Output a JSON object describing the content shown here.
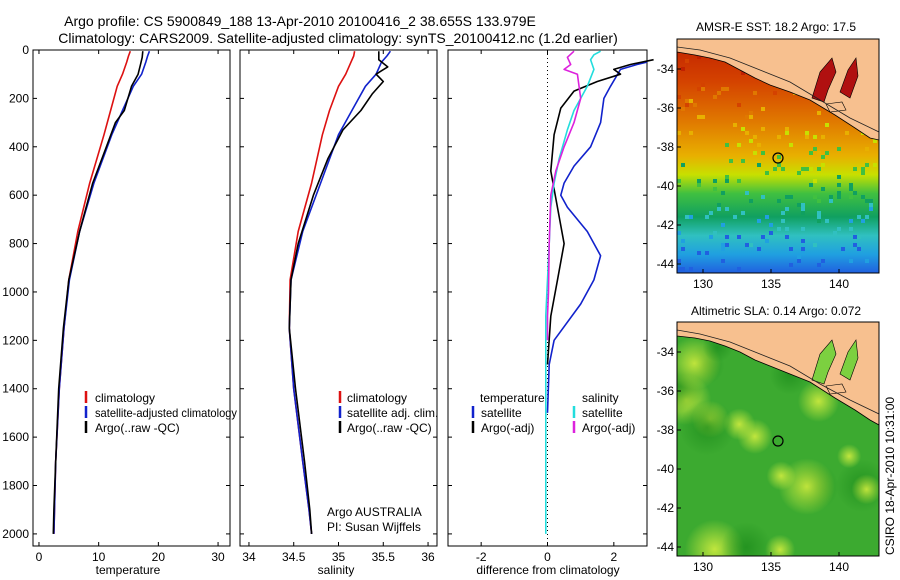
{
  "header": {
    "title_line1": "Argo profile: CS 5900849_188 13-Apr-2010 20100416_2 38.655S 133.979E",
    "title_line2": "Climatology: CARS2009. Satellite-adjusted climatology: synTS_20100412.nc (1.2d earlier)"
  },
  "credit": "CSIRO 18-Apr-2010 10:31:00",
  "colors": {
    "red": "#dd1111",
    "blue": "#1122cc",
    "black": "#000000",
    "cyan": "#22dddd",
    "magenta": "#dd22dd",
    "land": "#f7c08f"
  },
  "chart_data": [
    {
      "type": "line",
      "panel": "temperature",
      "xlabel": "temperature",
      "ylabel": "",
      "xlim": [
        -1,
        32
      ],
      "ylim": [
        2050,
        0
      ],
      "y_reversed": true,
      "xticks": [
        "0",
        "10",
        "20",
        "30"
      ],
      "yticks": [
        "0",
        "200",
        "400",
        "600",
        "800",
        "1000",
        "1200",
        "1400",
        "1600",
        "1800",
        "2000"
      ],
      "legend": [
        "climatology",
        "satellite-adjusted climatology",
        "Argo(..raw -QC)"
      ],
      "legend_position": "lower-right",
      "series": [
        {
          "name": "climatology",
          "color": "red",
          "x": [
            15.3,
            15.0,
            14.7,
            14.0,
            13.1,
            12.0,
            10.9,
            8.5,
            6.5,
            5.0,
            4.2,
            3.4,
            2.8,
            2.6,
            2.5
          ],
          "y": [
            5,
            25,
            50,
            100,
            150,
            250,
            350,
            550,
            750,
            950,
            1150,
            1400,
            1700,
            1900,
            2000
          ]
        },
        {
          "name": "satellite-adjusted climatology",
          "color": "blue",
          "x": [
            18.5,
            18.2,
            17.9,
            17.2,
            15.8,
            14.0,
            12.2,
            9.2,
            6.8,
            5.1,
            4.2,
            3.4,
            2.8,
            2.6,
            2.5
          ],
          "y": [
            5,
            25,
            50,
            100,
            150,
            250,
            350,
            550,
            750,
            950,
            1150,
            1400,
            1700,
            1900,
            2000
          ]
        },
        {
          "name": "Argo(..raw -QC)",
          "color": "black",
          "x": [
            17.4,
            17.3,
            17.0,
            16.6,
            15.5,
            14.3,
            12.8,
            11.3,
            9.0,
            6.8,
            5.0,
            4.1,
            3.3,
            2.8,
            2.5,
            2.4
          ],
          "y": [
            5,
            30,
            60,
            100,
            150,
            250,
            300,
            400,
            550,
            750,
            950,
            1150,
            1400,
            1700,
            1900,
            2000
          ]
        }
      ]
    },
    {
      "type": "line",
      "panel": "salinity",
      "xlabel": "salinity",
      "ylabel": "",
      "xlim": [
        33.9,
        36.1
      ],
      "ylim": [
        2050,
        0
      ],
      "y_reversed": true,
      "xticks": [
        "34",
        "34.5",
        "35",
        "35.5",
        "36"
      ],
      "legend": [
        "climatology",
        "satellite adj. clim.",
        "Argo(..raw -QC)"
      ],
      "legend_position": "lower-right",
      "annotation_line1": "Argo AUSTRALIA",
      "annotation_line2": "PI: Susan Wijffels",
      "series": [
        {
          "name": "climatology",
          "color": "red",
          "x": [
            35.18,
            35.17,
            35.14,
            35.08,
            35.0,
            34.9,
            34.82,
            34.7,
            34.55,
            34.46,
            34.45,
            34.5,
            34.6,
            34.67,
            34.7
          ],
          "y": [
            5,
            25,
            50,
            100,
            150,
            250,
            350,
            550,
            750,
            950,
            1150,
            1400,
            1700,
            1900,
            2000
          ]
        },
        {
          "name": "satellite adj. clim.",
          "color": "blue",
          "x": [
            35.58,
            35.54,
            35.48,
            35.42,
            35.3,
            35.15,
            35.0,
            34.8,
            34.6,
            34.47,
            34.45,
            34.5,
            34.6,
            34.67,
            34.7
          ],
          "y": [
            5,
            25,
            50,
            100,
            150,
            250,
            350,
            550,
            750,
            950,
            1150,
            1400,
            1700,
            1900,
            2000
          ]
        },
        {
          "name": "Argo(..raw -QC)",
          "color": "black",
          "x": [
            35.45,
            35.45,
            35.55,
            35.42,
            35.5,
            35.38,
            35.25,
            35.05,
            34.88,
            34.72,
            34.55,
            34.47,
            34.45,
            34.52,
            34.62,
            34.68,
            34.7
          ],
          "y": [
            5,
            40,
            70,
            100,
            130,
            180,
            250,
            330,
            450,
            600,
            800,
            950,
            1150,
            1400,
            1700,
            1900,
            2000
          ]
        }
      ]
    },
    {
      "type": "line",
      "panel": "difference",
      "xlabel": "difference from climatology",
      "ylabel": "",
      "xlim": [
        -3,
        3
      ],
      "ylim": [
        2050,
        0
      ],
      "y_reversed": true,
      "xticks": [
        "-2",
        "0",
        "2"
      ],
      "legend_headers": [
        "temperature",
        "salinity"
      ],
      "legend": [
        "satellite",
        "Argo(-adj)",
        "satellite",
        "Argo(-adj)"
      ],
      "legend_position": "lower-middle",
      "series": [
        {
          "name": "temperature satellite",
          "color": "blue",
          "x": [
            3.0,
            2.7,
            2.2,
            1.9,
            1.7,
            1.6,
            1.3,
            0.8,
            0.5,
            0.4,
            0.6,
            1.2,
            1.6,
            1.4,
            1.0,
            0.2,
            0.05,
            0
          ],
          "y": [
            50,
            60,
            80,
            150,
            200,
            300,
            400,
            480,
            550,
            600,
            650,
            750,
            850,
            950,
            1050,
            1200,
            1300,
            1500
          ]
        },
        {
          "name": "temperature Argo(-adj)",
          "color": "black",
          "x": [
            3.2,
            2.5,
            2.0,
            2.2,
            1.5,
            0.8,
            0.4,
            0.2,
            0.1,
            0.5,
            0.3,
            0.1,
            0
          ],
          "y": [
            40,
            60,
            80,
            100,
            130,
            170,
            240,
            350,
            500,
            800,
            950,
            1100,
            1300
          ]
        },
        {
          "name": "salinity satellite",
          "color": "cyan",
          "x": [
            1.6,
            1.4,
            1.3,
            1.4,
            1.2,
            1.0,
            0.8,
            0.6,
            0.35,
            0.2,
            0.1,
            0.05,
            0.0,
            -0.05,
            -0.05,
            -0.05,
            -0.05
          ],
          "y": [
            5,
            20,
            40,
            80,
            150,
            200,
            250,
            330,
            450,
            550,
            650,
            800,
            950,
            1100,
            1300,
            1500,
            2000
          ]
        },
        {
          "name": "salinity Argo(-adj)",
          "color": "magenta",
          "x": [
            0.8,
            0.6,
            0.7,
            0.5,
            0.9,
            1.0,
            0.8,
            0.5,
            0.25,
            0.1,
            0.05,
            0.03,
            0.0,
            0.0
          ],
          "y": [
            5,
            30,
            60,
            80,
            100,
            200,
            300,
            400,
            500,
            600,
            800,
            1000,
            1100,
            1200
          ]
        }
      ]
    }
  ],
  "maps": [
    {
      "title": "AMSR-E SST: 18.2 Argo: 17.5",
      "xticks": [
        "130",
        "135",
        "140"
      ],
      "yticks": [
        "-34",
        "-36",
        "-38",
        "-40",
        "-42",
        "-44"
      ],
      "argo_lon": 133.979,
      "argo_lat": -38.655
    },
    {
      "title": "Altimetric SLA: 0.14 Argo: 0.072",
      "xticks": [
        "130",
        "135",
        "140"
      ],
      "yticks": [
        "-34",
        "-36",
        "-38",
        "-40",
        "-42",
        "-44"
      ],
      "argo_lon": 133.979,
      "argo_lat": -38.655
    }
  ]
}
